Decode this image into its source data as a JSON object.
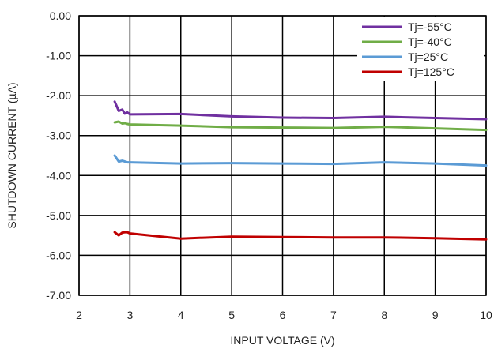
{
  "chart_data": {
    "type": "line",
    "xlabel": "INPUT VOLTAGE (V)",
    "ylabel": "SHUTDOWN CURRENT (µA)",
    "xlim": [
      2,
      10
    ],
    "ylim": [
      -7,
      0
    ],
    "grid": true,
    "legend_position": "top-right",
    "x_ticks": [
      2,
      3,
      4,
      5,
      6,
      7,
      8,
      9,
      10
    ],
    "x_tick_labels": [
      "2",
      "3",
      "4",
      "5",
      "6",
      "7",
      "8",
      "9",
      "10"
    ],
    "y_ticks": [
      0,
      -1,
      -2,
      -3,
      -4,
      -5,
      -6,
      -7
    ],
    "y_tick_labels": [
      "0.00",
      "-1.00",
      "-2.00",
      "-3.00",
      "-4.00",
      "-5.00",
      "-6.00",
      "-7.00"
    ],
    "series": [
      {
        "name": "Tj=-55°C",
        "color": "#7030a0",
        "x": [
          2.7,
          2.78,
          2.85,
          2.9,
          2.95,
          3,
          4,
          5,
          6,
          7,
          8,
          9,
          10
        ],
        "y": [
          -2.15,
          -2.38,
          -2.35,
          -2.45,
          -2.42,
          -2.47,
          -2.46,
          -2.52,
          -2.55,
          -2.56,
          -2.53,
          -2.56,
          -2.59
        ]
      },
      {
        "name": "Tj=-40°C",
        "color": "#70ad47",
        "x": [
          2.7,
          2.78,
          2.85,
          2.9,
          2.95,
          3,
          4,
          5,
          6,
          7,
          8,
          9,
          10
        ],
        "y": [
          -2.67,
          -2.65,
          -2.7,
          -2.69,
          -2.71,
          -2.72,
          -2.75,
          -2.79,
          -2.8,
          -2.81,
          -2.78,
          -2.82,
          -2.86
        ]
      },
      {
        "name": "Tj=25°C",
        "color": "#5b9bd5",
        "x": [
          2.7,
          2.78,
          2.85,
          2.9,
          2.95,
          3,
          4,
          5,
          6,
          7,
          8,
          9,
          10
        ],
        "y": [
          -3.5,
          -3.65,
          -3.63,
          -3.65,
          -3.67,
          -3.67,
          -3.7,
          -3.69,
          -3.7,
          -3.71,
          -3.67,
          -3.7,
          -3.75
        ]
      },
      {
        "name": "Tj=125°C",
        "color": "#c00000",
        "x": [
          2.7,
          2.78,
          2.85,
          2.9,
          2.95,
          3,
          4,
          5,
          6,
          7,
          8,
          9,
          10
        ],
        "y": [
          -5.42,
          -5.5,
          -5.43,
          -5.42,
          -5.42,
          -5.45,
          -5.58,
          -5.53,
          -5.54,
          -5.55,
          -5.55,
          -5.57,
          -5.6
        ]
      }
    ]
  }
}
